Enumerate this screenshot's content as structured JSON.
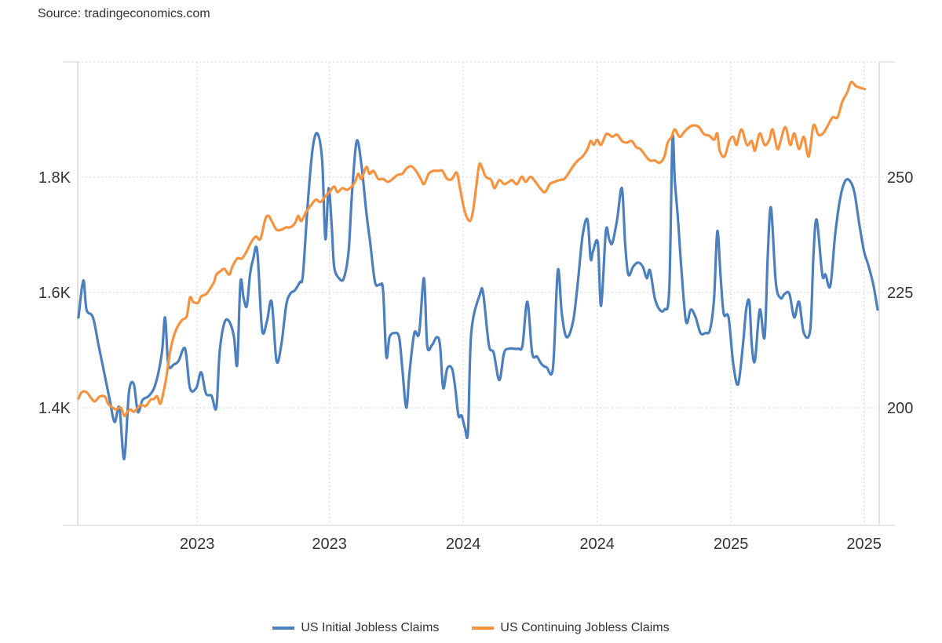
{
  "source_label": "Source: tradingeconomics.com",
  "colors": {
    "initial": "#4c7fbd",
    "continuing": "#f7923f",
    "grid": "#dcdcdc",
    "axis": "#e0e0e0"
  },
  "chart_data": {
    "type": "line",
    "title": "",
    "xlabel": "",
    "x_unit": "fraction of displayed time span (0 = start, 1 = end)",
    "x_ticks": [
      {
        "t": 0.149,
        "label": "2023"
      },
      {
        "t": 0.314,
        "label": "2023"
      },
      {
        "t": 0.481,
        "label": "2024"
      },
      {
        "t": 0.648,
        "label": "2024"
      },
      {
        "t": 0.815,
        "label": "2025"
      },
      {
        "t": 0.981,
        "label": "2025"
      }
    ],
    "y_left": {
      "label": "",
      "unit": "K",
      "range": [
        1.2,
        2.0
      ],
      "ticks": [
        {
          "v": 1.4,
          "label": "1.4K"
        },
        {
          "v": 1.6,
          "label": "1.6K"
        },
        {
          "v": 1.8,
          "label": "1.8K"
        }
      ],
      "extra_gridlines": [
        2.0
      ]
    },
    "y_right": {
      "label": "",
      "unit": "thousands",
      "range": [
        175,
        275
      ],
      "ticks": [
        {
          "v": 200,
          "label": "200"
        },
        {
          "v": 225,
          "label": "225"
        },
        {
          "v": 250,
          "label": "250"
        }
      ]
    },
    "grid": true,
    "legend_position": "bottom-center",
    "series": [
      {
        "name": "US Initial Jobless Claims",
        "axis": "right",
        "color": "#4c7fbd",
        "t": [
          0.001,
          0.007,
          0.011,
          0.019,
          0.026,
          0.034,
          0.04,
          0.046,
          0.052,
          0.058,
          0.064,
          0.07,
          0.075,
          0.081,
          0.089,
          0.097,
          0.105,
          0.109,
          0.113,
          0.12,
          0.126,
          0.134,
          0.14,
          0.148,
          0.154,
          0.16,
          0.167,
          0.173,
          0.177,
          0.183,
          0.189,
          0.195,
          0.199,
          0.203,
          0.207,
          0.211,
          0.215,
          0.219,
          0.224,
          0.23,
          0.236,
          0.242,
          0.248,
          0.254,
          0.26,
          0.265,
          0.271,
          0.277,
          0.281,
          0.287,
          0.293,
          0.299,
          0.305,
          0.309,
          0.313,
          0.317,
          0.32,
          0.326,
          0.332,
          0.338,
          0.342,
          0.348,
          0.354,
          0.36,
          0.365,
          0.371,
          0.377,
          0.381,
          0.385,
          0.389,
          0.395,
          0.401,
          0.405,
          0.41,
          0.414,
          0.42,
          0.426,
          0.432,
          0.436,
          0.442,
          0.448,
          0.452,
          0.456,
          0.461,
          0.467,
          0.471,
          0.475,
          0.479,
          0.483,
          0.487,
          0.491,
          0.502,
          0.506,
          0.513,
          0.519,
          0.526,
          0.532,
          0.538,
          0.544,
          0.55,
          0.555,
          0.561,
          0.567,
          0.573,
          0.579,
          0.585,
          0.593,
          0.599,
          0.604,
          0.61,
          0.618,
          0.624,
          0.63,
          0.636,
          0.64,
          0.643,
          0.649,
          0.653,
          0.659,
          0.663,
          0.667,
          0.673,
          0.679,
          0.683,
          0.687,
          0.693,
          0.699,
          0.705,
          0.71,
          0.714,
          0.72,
          0.726,
          0.732,
          0.738,
          0.742,
          0.745,
          0.749,
          0.753,
          0.759,
          0.765,
          0.771,
          0.777,
          0.783,
          0.789,
          0.794,
          0.798,
          0.802,
          0.806,
          0.812,
          0.818,
          0.824,
          0.83,
          0.834,
          0.838,
          0.841,
          0.845,
          0.851,
          0.857,
          0.861,
          0.865,
          0.871,
          0.877,
          0.882,
          0.888,
          0.894,
          0.9,
          0.906,
          0.914,
          0.918,
          0.922,
          0.929,
          0.933,
          0.939,
          0.945,
          0.951,
          0.957,
          0.963,
          0.969,
          0.975,
          0.981,
          0.987,
          0.993,
          0.998
        ],
        "values": [
          219.6,
          227.6,
          221.3,
          219.6,
          213.6,
          206.8,
          201.7,
          196.9,
          200.0,
          188.9,
          203.4,
          205.1,
          199.1,
          201.7,
          202.6,
          205.1,
          211.9,
          219.6,
          209.4,
          209.4,
          210.2,
          212.8,
          204.3,
          204.3,
          207.7,
          203.1,
          202.6,
          200.0,
          211.9,
          218.4,
          218.7,
          215.3,
          209.4,
          227.2,
          223.8,
          222.1,
          228.9,
          232.3,
          234.0,
          217.0,
          218.7,
          223.0,
          210.2,
          213.6,
          222.1,
          224.7,
          225.5,
          227.2,
          228.9,
          244.2,
          256.1,
          259.5,
          253.6,
          236.6,
          247.6,
          239.1,
          230.6,
          228.1,
          228.1,
          234.0,
          245.9,
          257.8,
          252.7,
          242.5,
          235.7,
          227.2,
          226.7,
          225.5,
          211.1,
          215.3,
          216.2,
          215.3,
          208.5,
          200.0,
          207.7,
          216.2,
          216.2,
          228.1,
          213.6,
          213.6,
          215.3,
          213.6,
          204.3,
          208.5,
          208.5,
          204.3,
          198.3,
          198.3,
          195.7,
          194.9,
          216.2,
          224.7,
          224.7,
          213.6,
          211.9,
          206.0,
          211.9,
          212.8,
          212.8,
          212.8,
          213.6,
          223.0,
          211.9,
          211.1,
          209.4,
          208.8,
          208.8,
          229.8,
          220.4,
          215.3,
          218.7,
          227.2,
          237.4,
          240.8,
          232.3,
          234.0,
          235.7,
          222.1,
          238.3,
          236.6,
          235.7,
          240.8,
          247.6,
          235.7,
          228.9,
          230.6,
          231.5,
          230.6,
          228.1,
          229.8,
          223.8,
          221.3,
          221.3,
          225.5,
          258.2,
          249.3,
          240.8,
          230.6,
          218.7,
          221.3,
          219.6,
          216.2,
          216.2,
          217.0,
          223.8,
          238.3,
          228.9,
          220.4,
          219.6,
          209.4,
          205.1,
          213.6,
          221.3,
          223.0,
          213.6,
          210.2,
          221.3,
          215.3,
          233.2,
          243.4,
          227.2,
          223.8,
          224.7,
          224.7,
          219.6,
          223.0,
          216.2,
          217.0,
          233.2,
          240.8,
          228.9,
          228.9,
          226.4,
          237.4,
          245.1,
          249.0,
          249.3,
          246.8,
          240.0,
          234.0,
          230.6,
          226.4,
          221.3,
          217.0
        ]
      },
      {
        "name": "US Continuing Jobless Claims",
        "axis": "left",
        "color": "#f7923f",
        "t": [
          0.001,
          0.005,
          0.011,
          0.017,
          0.021,
          0.025,
          0.028,
          0.034,
          0.038,
          0.044,
          0.048,
          0.054,
          0.058,
          0.062,
          0.066,
          0.07,
          0.075,
          0.079,
          0.085,
          0.091,
          0.095,
          0.099,
          0.103,
          0.107,
          0.111,
          0.115,
          0.119,
          0.124,
          0.13,
          0.136,
          0.14,
          0.144,
          0.15,
          0.154,
          0.16,
          0.164,
          0.17,
          0.173,
          0.179,
          0.183,
          0.189,
          0.193,
          0.199,
          0.205,
          0.211,
          0.216,
          0.222,
          0.228,
          0.234,
          0.238,
          0.242,
          0.248,
          0.254,
          0.26,
          0.265,
          0.271,
          0.275,
          0.279,
          0.285,
          0.291,
          0.297,
          0.303,
          0.309,
          0.314,
          0.32,
          0.324,
          0.33,
          0.336,
          0.342,
          0.346,
          0.35,
          0.354,
          0.36,
          0.364,
          0.369,
          0.375,
          0.381,
          0.387,
          0.393,
          0.399,
          0.405,
          0.41,
          0.416,
          0.422,
          0.428,
          0.432,
          0.438,
          0.444,
          0.45,
          0.455,
          0.461,
          0.467,
          0.473,
          0.477,
          0.483,
          0.489,
          0.493,
          0.497,
          0.501,
          0.505,
          0.509,
          0.516,
          0.52,
          0.526,
          0.532,
          0.538,
          0.542,
          0.548,
          0.554,
          0.559,
          0.565,
          0.571,
          0.577,
          0.583,
          0.589,
          0.595,
          0.601,
          0.607,
          0.612,
          0.618,
          0.624,
          0.63,
          0.636,
          0.64,
          0.644,
          0.648,
          0.653,
          0.659,
          0.663,
          0.667,
          0.673,
          0.679,
          0.685,
          0.691,
          0.697,
          0.702,
          0.708,
          0.714,
          0.72,
          0.726,
          0.732,
          0.736,
          0.741,
          0.745,
          0.751,
          0.757,
          0.763,
          0.769,
          0.775,
          0.779,
          0.782,
          0.788,
          0.794,
          0.798,
          0.801,
          0.807,
          0.813,
          0.818,
          0.822,
          0.828,
          0.835,
          0.841,
          0.845,
          0.851,
          0.857,
          0.863,
          0.867,
          0.873,
          0.877,
          0.883,
          0.889,
          0.894,
          0.9,
          0.906,
          0.912,
          0.918,
          0.924,
          0.93,
          0.936,
          0.942,
          0.948,
          0.954,
          0.96,
          0.965,
          0.971,
          0.977,
          0.982
        ],
        "values": [
          1.416,
          1.427,
          1.427,
          1.416,
          1.411,
          1.416,
          1.42,
          1.419,
          1.407,
          1.4,
          1.397,
          1.4,
          1.386,
          1.393,
          1.397,
          1.393,
          1.4,
          1.405,
          1.403,
          1.414,
          1.415,
          1.42,
          1.407,
          1.427,
          1.457,
          1.495,
          1.52,
          1.539,
          1.552,
          1.559,
          1.591,
          1.584,
          1.582,
          1.593,
          1.597,
          1.604,
          1.618,
          1.631,
          1.638,
          1.641,
          1.631,
          1.645,
          1.659,
          1.659,
          1.672,
          1.686,
          1.697,
          1.693,
          1.727,
          1.733,
          1.724,
          1.709,
          1.709,
          1.713,
          1.713,
          1.72,
          1.733,
          1.724,
          1.74,
          1.751,
          1.761,
          1.757,
          1.767,
          1.774,
          1.784,
          1.774,
          1.781,
          1.778,
          1.784,
          1.792,
          1.806,
          1.797,
          1.818,
          1.806,
          1.811,
          1.797,
          1.797,
          1.792,
          1.797,
          1.804,
          1.806,
          1.815,
          1.819,
          1.811,
          1.797,
          1.788,
          1.806,
          1.811,
          1.811,
          1.811,
          1.797,
          1.797,
          1.808,
          1.781,
          1.74,
          1.724,
          1.74,
          1.781,
          1.822,
          1.815,
          1.801,
          1.795,
          1.781,
          1.795,
          1.788,
          1.792,
          1.795,
          1.788,
          1.801,
          1.792,
          1.801,
          1.792,
          1.781,
          1.774,
          1.788,
          1.792,
          1.795,
          1.797,
          1.806,
          1.819,
          1.829,
          1.836,
          1.849,
          1.863,
          1.856,
          1.865,
          1.856,
          1.874,
          1.874,
          1.87,
          1.874,
          1.863,
          1.86,
          1.863,
          1.852,
          1.849,
          1.838,
          1.829,
          1.829,
          1.825,
          1.836,
          1.86,
          1.87,
          1.883,
          1.87,
          1.879,
          1.887,
          1.89,
          1.887,
          1.879,
          1.874,
          1.872,
          1.865,
          1.876,
          1.846,
          1.836,
          1.863,
          1.87,
          1.856,
          1.883,
          1.856,
          1.863,
          1.846,
          1.876,
          1.856,
          1.865,
          1.883,
          1.849,
          1.863,
          1.887,
          1.856,
          1.876,
          1.849,
          1.87,
          1.836,
          1.89,
          1.874,
          1.876,
          1.89,
          1.904,
          1.904,
          1.931,
          1.947,
          1.965,
          1.958,
          1.955,
          1.953,
          1.955,
          1.955
        ]
      }
    ]
  }
}
